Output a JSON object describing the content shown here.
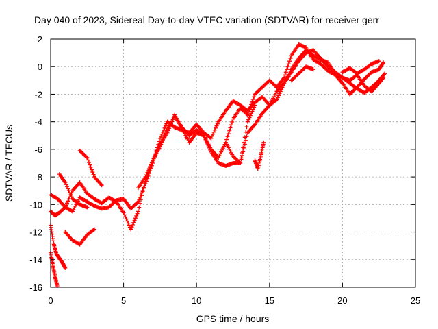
{
  "chart_data": {
    "type": "scatter",
    "title": "Day 040 of 2023, Sidereal Day-to-day VTEC variation (SDTVAR) for receiver gerr",
    "xlabel": "GPS time / hours",
    "ylabel": "SDTVAR / TECUs",
    "xlim": [
      0,
      25
    ],
    "ylim": [
      -16,
      2
    ],
    "xticks": [
      0,
      5,
      10,
      15,
      20,
      25
    ],
    "yticks": [
      -16,
      -14,
      -12,
      -10,
      -8,
      -6,
      -4,
      -2,
      0,
      2
    ],
    "grid": true,
    "marker": "+",
    "series": [
      {
        "color": "#ff0000",
        "x": [
          0.0,
          0.5,
          1.0,
          1.5,
          2.0,
          2.5,
          3.0,
          3.5,
          4.0,
          4.5,
          5.0,
          5.5,
          6.0,
          6.5,
          7.0,
          7.5,
          8.0,
          8.5,
          9.0,
          9.5,
          10.0,
          10.5,
          11.0,
          11.5,
          12.0,
          12.5,
          13.0,
          13.5,
          14.0,
          14.5,
          15.0,
          15.5,
          16.0,
          16.5,
          17.0,
          17.5,
          18.0,
          18.5,
          19.0,
          19.5,
          20.0,
          20.5,
          21.0,
          21.5,
          22.0,
          22.5,
          22.8
        ],
        "y": [
          -9.3,
          -9.6,
          -10.2,
          -10.5,
          -9.5,
          -9.8,
          -10.1,
          -10.3,
          -10.2,
          -9.7,
          -9.6,
          -10.3,
          -9.8,
          -8.5,
          -7.0,
          -5.2,
          -4.0,
          -4.4,
          -4.6,
          -4.8,
          -4.2,
          -4.8,
          -5.2,
          -4.0,
          -3.2,
          -2.5,
          -2.8,
          -3.2,
          -2.6,
          -2.2,
          -2.8,
          -2.4,
          -1.2,
          -0.2,
          0.6,
          1.2,
          0.8,
          0.5,
          0.3,
          -0.5,
          -0.8,
          -1.0,
          -0.6,
          -1.4,
          -1.8,
          -1.2,
          -0.8
        ]
      },
      {
        "color": "#ff0000",
        "x": [
          0.0,
          0.3,
          0.6,
          1.0,
          1.5,
          2.0,
          2.5,
          3.0,
          3.5,
          4.0,
          4.5,
          5.0,
          5.5,
          6.0,
          6.5,
          7.0,
          7.5,
          8.0,
          8.5,
          9.0,
          9.5,
          10.0,
          10.5,
          11.0,
          11.5,
          12.0,
          12.5,
          13.0,
          13.5,
          14.0,
          14.5,
          15.0,
          15.5,
          16.0,
          16.5,
          17.0,
          17.5,
          18.0,
          18.5,
          19.0,
          19.5,
          20.0,
          20.5,
          21.0,
          21.5,
          22.0,
          22.5,
          22.8
        ],
        "y": [
          -10.5,
          -10.8,
          -10.6,
          -10.2,
          -9.0,
          -8.4,
          -9.2,
          -9.6,
          -9.9,
          -9.5,
          -9.8,
          -10.6,
          -11.8,
          -10.5,
          -8.2,
          -6.8,
          -5.6,
          -4.8,
          -3.5,
          -4.5,
          -5.5,
          -4.8,
          -5.0,
          -6.0,
          -6.6,
          -5.5,
          -3.8,
          -3.0,
          -3.5,
          -2.0,
          -1.5,
          -1.0,
          -1.5,
          -0.8,
          0.8,
          1.6,
          1.4,
          0.5,
          0.2,
          -0.3,
          -0.6,
          -1.2,
          -2.0,
          -1.5,
          -0.9,
          -0.4,
          -0.2,
          0.3
        ]
      },
      {
        "color": "#ff0000",
        "x": [
          6.0,
          6.5,
          7.0,
          7.5,
          8.0,
          8.5,
          9.0,
          9.5,
          10.0,
          10.5,
          11.0,
          11.5,
          12.0,
          12.5,
          13.0,
          13.5,
          14.0,
          14.5,
          15.0,
          15.5,
          16.0,
          16.5,
          17.0,
          17.5,
          18.0,
          18.5,
          19.0,
          19.5,
          20.0,
          20.5,
          21.0,
          21.5,
          22.0,
          22.5,
          22.9
        ],
        "y": [
          -8.8,
          -8.0,
          -6.8,
          -5.8,
          -4.5,
          -3.6,
          -4.4,
          -5.0,
          -4.6,
          -5.0,
          -6.2,
          -7.0,
          -7.2,
          -7.0,
          -7.0,
          -4.8,
          -4.2,
          -3.4,
          -2.8,
          -1.8,
          -1.2,
          -0.4,
          0.4,
          1.0,
          1.2,
          0.6,
          0.0,
          -0.4,
          -0.8,
          -1.2,
          -1.6,
          -1.9,
          -1.5,
          -1.0,
          -0.5
        ]
      },
      {
        "color": "#ff0000",
        "x": [
          1.0,
          1.5,
          2.0,
          2.5,
          3.0
        ],
        "y": [
          -12.0,
          -12.6,
          -12.9,
          -12.2,
          -11.8
        ]
      },
      {
        "color": "#ff0000",
        "x": [
          0.0,
          0.2,
          0.4,
          0.6,
          0.8,
          1.0
        ],
        "y": [
          -11.5,
          -12.8,
          -13.6,
          -13.9,
          -14.2,
          -14.6
        ]
      },
      {
        "color": "#ff0000",
        "x": [
          0.0,
          0.15,
          0.3,
          0.45
        ],
        "y": [
          -13.5,
          -14.4,
          -15.2,
          -15.9
        ]
      },
      {
        "color": "#ff0000",
        "x": [
          0.6,
          1.0,
          1.5,
          2.0,
          2.5
        ],
        "y": [
          -7.8,
          -8.4,
          -9.6,
          -10.0,
          -10.2
        ]
      },
      {
        "color": "#ff0000",
        "x": [
          2.0,
          2.5,
          3.0,
          3.5
        ],
        "y": [
          -6.1,
          -6.6,
          -8.0,
          -8.6
        ]
      },
      {
        "color": "#ff0000",
        "x": [
          12.0,
          12.5,
          13.0,
          13.5,
          14.0
        ],
        "y": [
          -5.5,
          -6.5,
          -7.0,
          -4.0,
          -2.8
        ]
      },
      {
        "color": "#ff0000",
        "x": [
          14.0,
          14.2,
          14.4,
          14.6
        ],
        "y": [
          -6.8,
          -7.4,
          -6.5,
          -5.5
        ]
      },
      {
        "color": "#ff0000",
        "x": [
          16.5,
          17.0,
          17.5,
          18.0
        ],
        "y": [
          -1.0,
          -0.5,
          0.0,
          -0.2
        ]
      },
      {
        "color": "#ff0000",
        "x": [
          20.0,
          20.5,
          21.0,
          21.5,
          22.0,
          22.5
        ],
        "y": [
          -0.4,
          -0.1,
          -0.5,
          -0.2,
          0.2,
          0.4
        ]
      }
    ]
  }
}
